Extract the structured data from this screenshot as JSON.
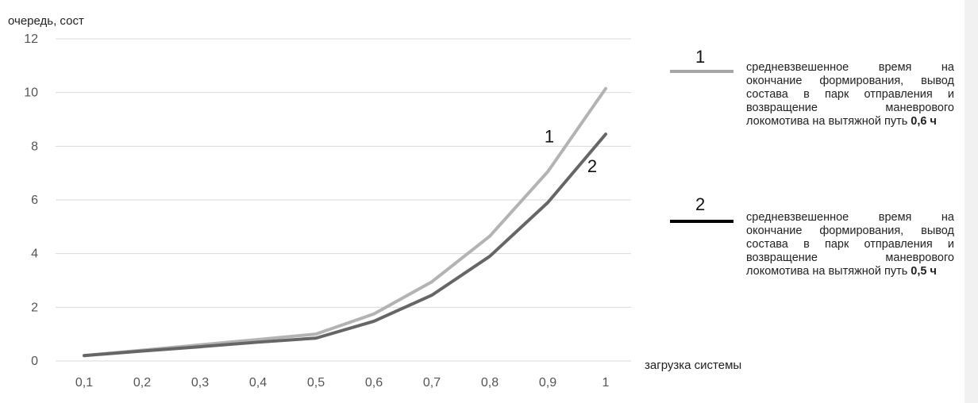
{
  "chart_data": {
    "type": "line",
    "ylabel": "очередь, сост",
    "xlabel": "загрузка системы",
    "x": [
      "0,1",
      "0,2",
      "0,3",
      "0,4",
      "0,5",
      "0,6",
      "0,7",
      "0,8",
      "0,9",
      "1"
    ],
    "yticks": [
      "0",
      "2",
      "4",
      "6",
      "8",
      "10",
      "12"
    ],
    "ylim": [
      0,
      12
    ],
    "grid": true,
    "series": [
      {
        "name": "1",
        "color": "#b3b3b3",
        "values": [
          0.2,
          0.4,
          0.6,
          0.8,
          1.0,
          1.75,
          2.95,
          4.65,
          7.05,
          10.15
        ]
      },
      {
        "name": "2",
        "color": "#666666",
        "values": [
          0.2,
          0.37,
          0.53,
          0.7,
          0.85,
          1.48,
          2.45,
          3.9,
          5.9,
          8.45
        ]
      }
    ],
    "legend": {
      "position": "right",
      "items": [
        {
          "marker": "1",
          "color": "#a6a6a6",
          "text": "средневзвешенное время на окончание формирования, вывод состава в парк отправления и возвращение маневрового локомотива на вытяжной путь",
          "bold": "0,6 ч"
        },
        {
          "marker": "2",
          "color": "#000000",
          "text": "средневзвешенное время на окончание формирования, вывод состава в парк отправления и возвращение маневрового локомотива на вытяжной путь",
          "bold": "0,5 ч"
        }
      ]
    }
  }
}
